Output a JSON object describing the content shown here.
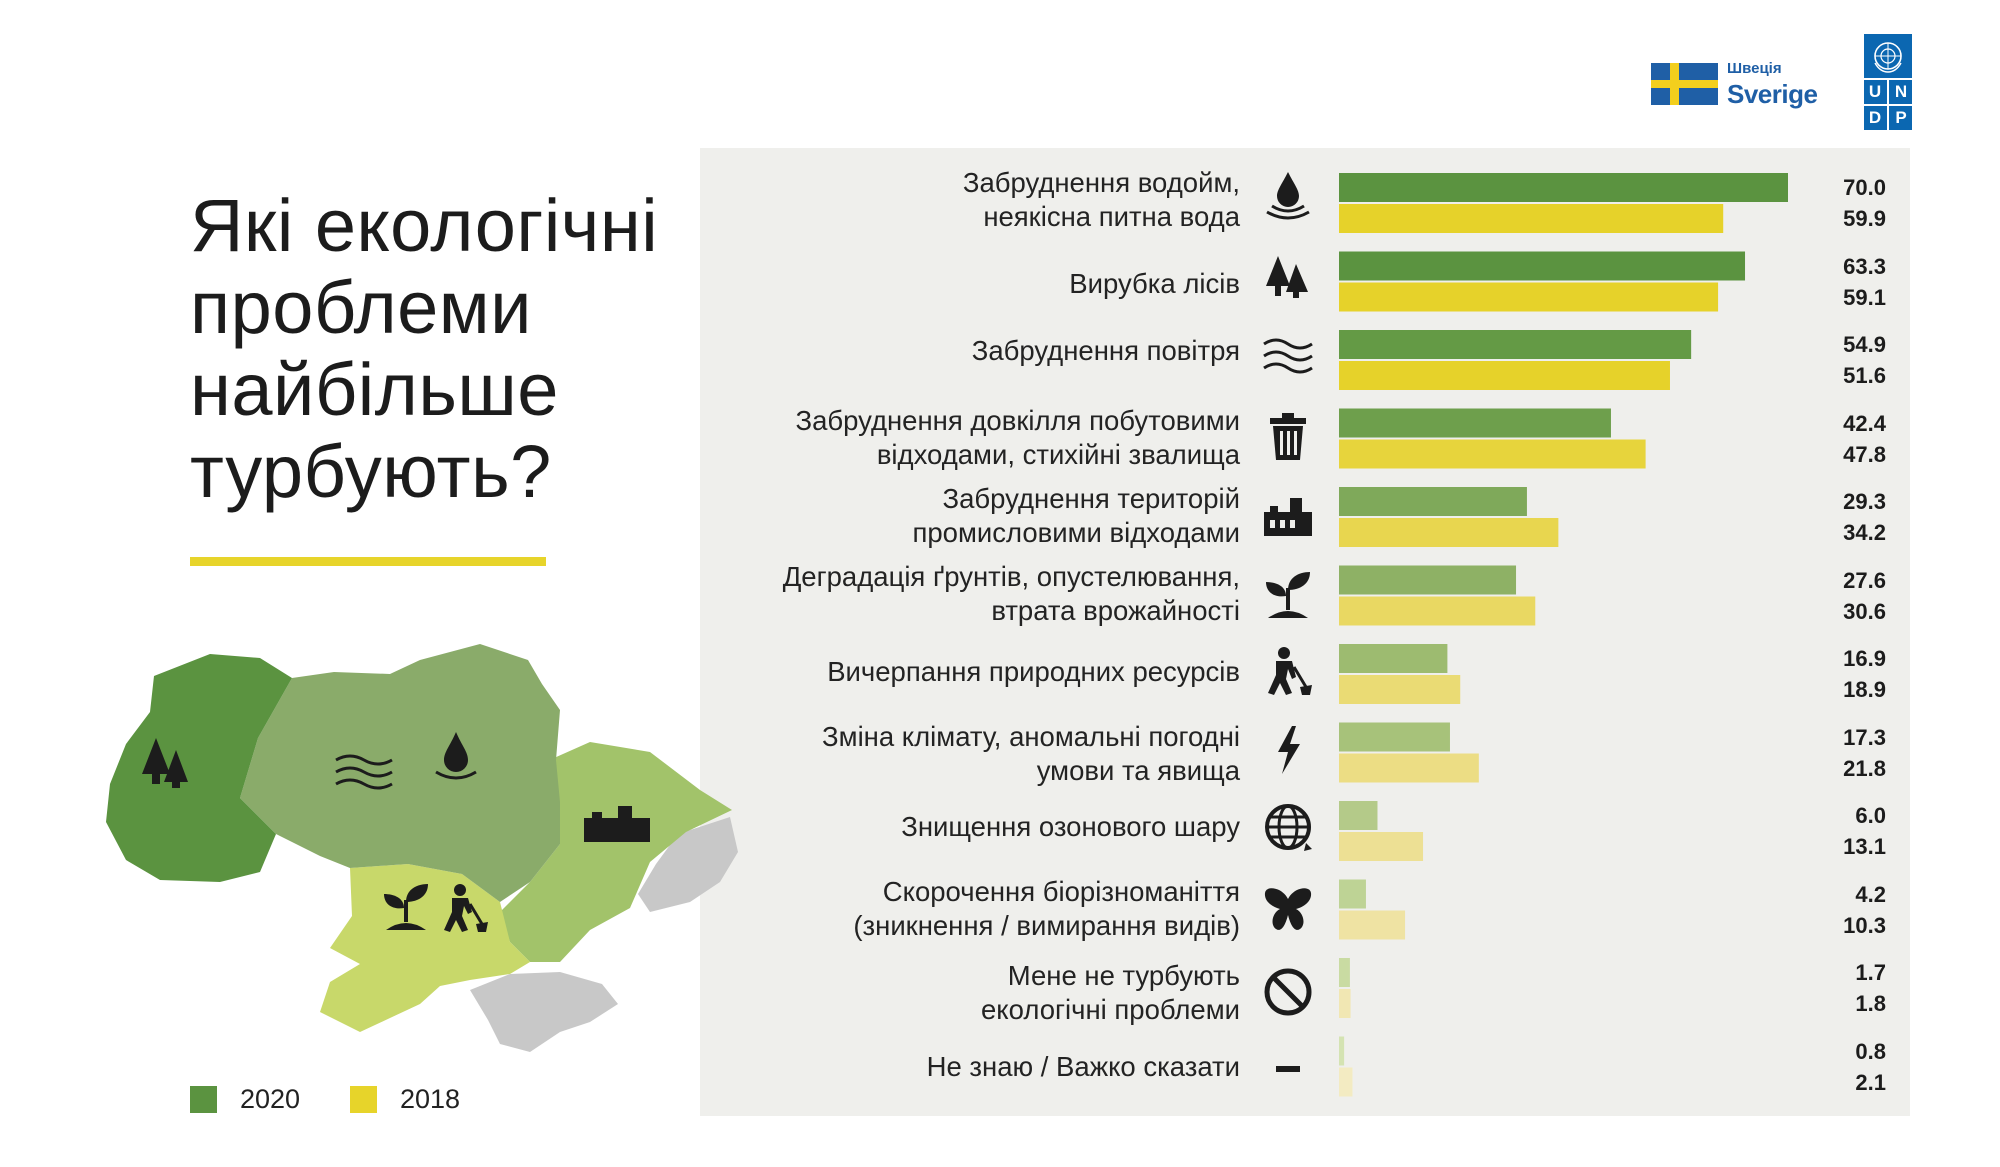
{
  "title_lines": [
    "Які екологічні",
    "проблеми",
    "найбільше",
    "турбують?"
  ],
  "logos": {
    "sweden_top": "Швеція",
    "sweden_main": "Sverige",
    "undp_letters": [
      "U",
      "N",
      "D",
      "P"
    ]
  },
  "legend": [
    {
      "label": "2020",
      "color": "#5b9340"
    },
    {
      "label": "2018",
      "color": "#e7d42a"
    }
  ],
  "chart_data": {
    "type": "bar",
    "orientation": "horizontal",
    "title": "Які екологічні проблеми найбільше турбують?",
    "series": [
      {
        "name": "2020",
        "values": [
          70.0,
          63.3,
          54.9,
          42.4,
          29.3,
          27.6,
          16.9,
          17.3,
          6.0,
          4.2,
          1.7,
          0.8
        ]
      },
      {
        "name": "2018",
        "values": [
          59.9,
          59.1,
          51.6,
          47.8,
          34.2,
          30.6,
          18.9,
          21.8,
          13.1,
          10.3,
          1.8,
          2.1
        ]
      }
    ],
    "value_labels_2020": [
      "70.0",
      "63.3",
      "54.9",
      "42.4",
      "29.3",
      "27.6",
      "16.9",
      "17.3",
      "6.0",
      "4.2",
      "1.7",
      "0.8"
    ],
    "value_labels_2018": [
      "59.9",
      "59.1",
      "51.6",
      "47.8",
      "34.2",
      "30.6",
      "18.9",
      "21.8",
      "13.1",
      "10.3",
      "1.8",
      "2.1"
    ],
    "xlim": [
      0,
      70
    ],
    "colors_2020": [
      "#5b9340",
      "#5b9340",
      "#649a45",
      "#6e9f4c",
      "#7fa95a",
      "#8eb165",
      "#9dbb70",
      "#a7c27a",
      "#b4ca89",
      "#bed395",
      "#c9dba2",
      "#d4e3b2"
    ],
    "colors_2018": [
      "#e6d22a",
      "#e6d22a",
      "#e6d22a",
      "#e7d43c",
      "#e8d64f",
      "#e9d862",
      "#eadb74",
      "#ecdd84",
      "#ede094",
      "#efe3a3",
      "#f1e7b3",
      "#f3ebc2"
    ],
    "rows": [
      {
        "lines": [
          "Забруднення водойм,",
          "неякісна питна вода"
        ],
        "icon": "water-drop-icon"
      },
      {
        "lines": [
          "Вирубка лісів"
        ],
        "icon": "trees-icon"
      },
      {
        "lines": [
          "Забруднення повітря"
        ],
        "icon": "air-waves-icon"
      },
      {
        "lines": [
          "Забруднення довкілля побутовими",
          "відходами, стихійні звалища"
        ],
        "icon": "trash-bin-icon"
      },
      {
        "lines": [
          "Забруднення територій",
          "промисловими відходами"
        ],
        "icon": "factory-icon"
      },
      {
        "lines": [
          "Деградація ґрунтів, опустелювання,",
          "втрата врожайності"
        ],
        "icon": "sprout-icon"
      },
      {
        "lines": [
          "Вичерпання природних ресурсів"
        ],
        "icon": "digging-worker-icon"
      },
      {
        "lines": [
          "Зміна клімату, аномальні погодні",
          "умови та явища"
        ],
        "icon": "lightning-icon"
      },
      {
        "lines": [
          "Знищення озонового шару"
        ],
        "icon": "globe-icon"
      },
      {
        "lines": [
          "Скорочення біорізноманіття",
          "(зникнення / вимирання видів)"
        ],
        "icon": "butterfly-icon"
      },
      {
        "lines": [
          "Мене не турбують",
          "екологічні проблеми"
        ],
        "icon": "prohibited-icon"
      },
      {
        "lines": [
          "Не знаю / Важко сказати"
        ],
        "icon": "dash-icon"
      }
    ]
  },
  "map": {
    "regions": [
      "west",
      "center-north",
      "east",
      "south",
      "occupied"
    ],
    "colors": {
      "west": "#5b9340",
      "center_north": "#8aab6a",
      "east": "#a2c36a",
      "south": "#c8d86a",
      "occupied": "#c8c8c8"
    }
  }
}
